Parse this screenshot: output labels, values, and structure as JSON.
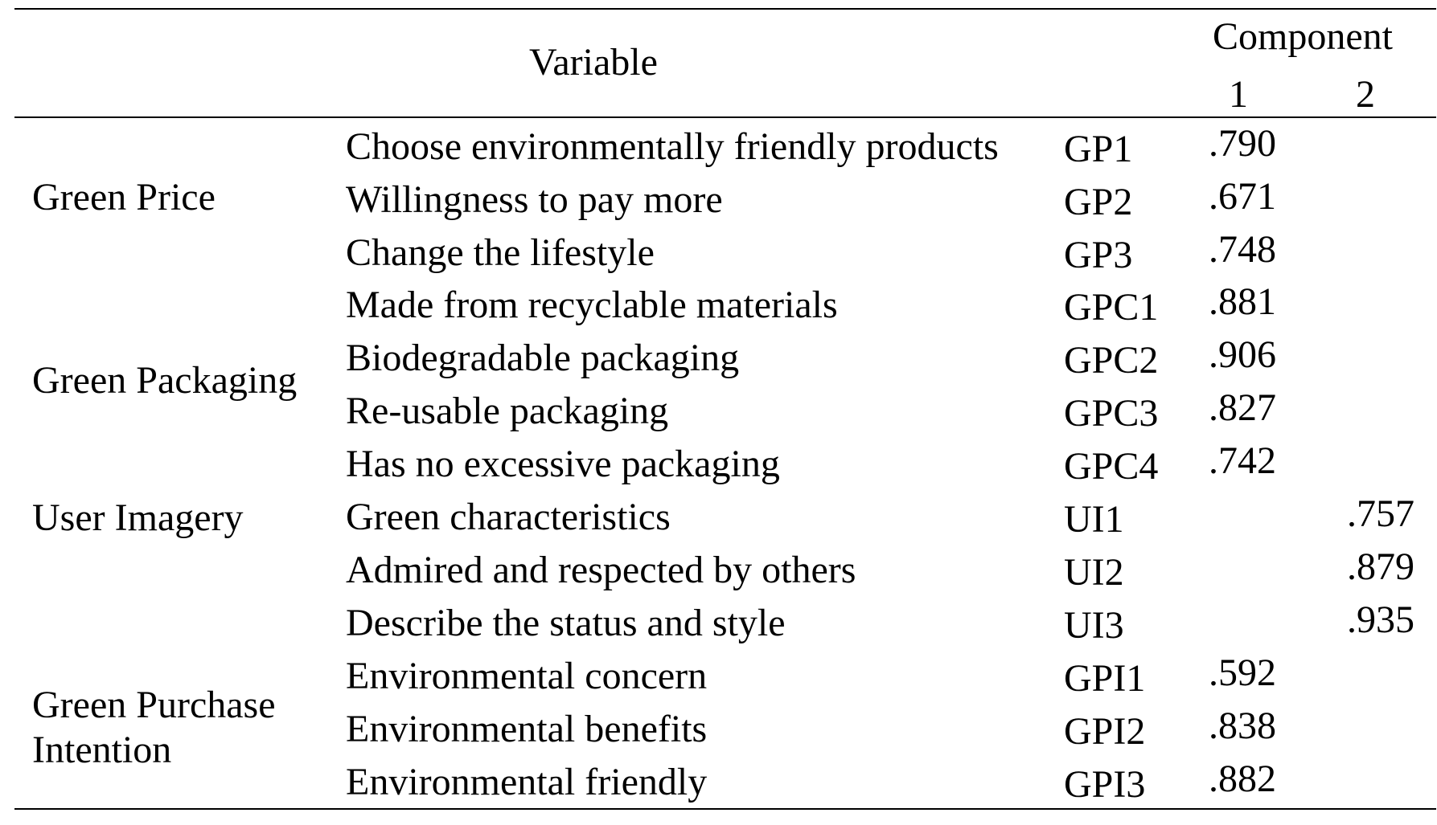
{
  "header": {
    "variable": "Variable",
    "component": "Component",
    "component_1": "1",
    "component_2": "2"
  },
  "groups": [
    {
      "lines": [
        "Green Price"
      ]
    },
    {
      "lines": [
        "Green Packaging"
      ]
    },
    {
      "lines": [
        "User Imagery"
      ]
    },
    {
      "lines": [
        "Green Purchase",
        "Intention"
      ]
    }
  ],
  "rows": [
    {
      "item": "Choose environmentally friendly products",
      "code": "GP1",
      "c1": ".790",
      "c2": ""
    },
    {
      "item": "Willingness to pay more",
      "code": "GP2",
      "c1": ".671",
      "c2": ""
    },
    {
      "item": "Change the lifestyle",
      "code": "GP3",
      "c1": ".748",
      "c2": ""
    },
    {
      "item": "Made from recyclable materials",
      "code": "GPC1",
      "c1": ".881",
      "c2": ""
    },
    {
      "item": "Biodegradable packaging",
      "code": "GPC2",
      "c1": ".906",
      "c2": ""
    },
    {
      "item": "Re-usable packaging",
      "code": "GPC3",
      "c1": ".827",
      "c2": ""
    },
    {
      "item": "Has no excessive packaging",
      "code": "GPC4",
      "c1": ".742",
      "c2": ""
    },
    {
      "item": "Green characteristics",
      "code": "UI1",
      "c1": "",
      "c2": ".757"
    },
    {
      "item": "Admired and respected by others",
      "code": "UI2",
      "c1": "",
      "c2": ".879"
    },
    {
      "item": "Describe the status and style",
      "code": "UI3",
      "c1": "",
      "c2": ".935"
    },
    {
      "item": "Environmental concern",
      "code": "GPI1",
      "c1": ".592",
      "c2": ""
    },
    {
      "item": "Environmental benefits",
      "code": "GPI2",
      "c1": ".838",
      "c2": ""
    },
    {
      "item": "Environmental friendly",
      "code": "GPI3",
      "c1": ".882",
      "c2": ""
    }
  ]
}
